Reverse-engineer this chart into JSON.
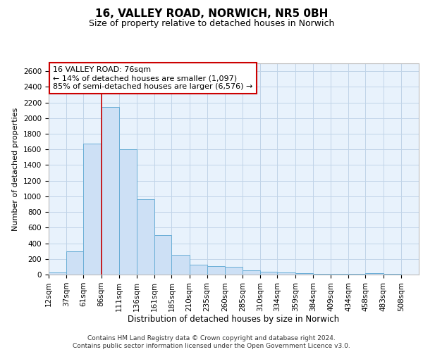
{
  "title1": "16, VALLEY ROAD, NORWICH, NR5 0BH",
  "title2": "Size of property relative to detached houses in Norwich",
  "xlabel": "Distribution of detached houses by size in Norwich",
  "ylabel": "Number of detached properties",
  "annotation_title": "16 VALLEY ROAD: 76sqm",
  "annotation_line1": "← 14% of detached houses are smaller (1,097)",
  "annotation_line2": "85% of semi-detached houses are larger (6,576) →",
  "footer1": "Contains HM Land Registry data © Crown copyright and database right 2024.",
  "footer2": "Contains public sector information licensed under the Open Government Licence v3.0.",
  "bar_left_edges": [
    12,
    37,
    61,
    86,
    111,
    136,
    161,
    185,
    210,
    235,
    260,
    285,
    310,
    334,
    359,
    384,
    409,
    434,
    458,
    483
  ],
  "bar_widths": [
    25,
    24,
    25,
    25,
    25,
    25,
    24,
    25,
    25,
    25,
    25,
    25,
    24,
    25,
    25,
    25,
    25,
    24,
    25,
    25
  ],
  "bar_heights": [
    25,
    295,
    1670,
    2140,
    1600,
    960,
    500,
    250,
    125,
    110,
    95,
    50,
    35,
    25,
    20,
    8,
    5,
    5,
    15,
    8
  ],
  "bar_color": "#cde0f5",
  "bar_edge_color": "#6aaed6",
  "vline_color": "#cc0000",
  "vline_x": 86,
  "annotation_box_color": "#ffffff",
  "annotation_box_edge": "#cc0000",
  "grid_color": "#c0d4e8",
  "bg_color": "#e8f2fc",
  "ylim": [
    0,
    2700
  ],
  "yticks": [
    0,
    200,
    400,
    600,
    800,
    1000,
    1200,
    1400,
    1600,
    1800,
    2000,
    2200,
    2400,
    2600
  ],
  "xtick_labels": [
    "12sqm",
    "37sqm",
    "61sqm",
    "86sqm",
    "111sqm",
    "136sqm",
    "161sqm",
    "185sqm",
    "210sqm",
    "235sqm",
    "260sqm",
    "285sqm",
    "310sqm",
    "334sqm",
    "359sqm",
    "384sqm",
    "409sqm",
    "434sqm",
    "458sqm",
    "483sqm",
    "508sqm"
  ],
  "title1_fontsize": 11,
  "title2_fontsize": 9,
  "xlabel_fontsize": 8.5,
  "ylabel_fontsize": 8,
  "tick_fontsize": 7.5,
  "footer_fontsize": 6.5,
  "ann_fontsize": 8
}
